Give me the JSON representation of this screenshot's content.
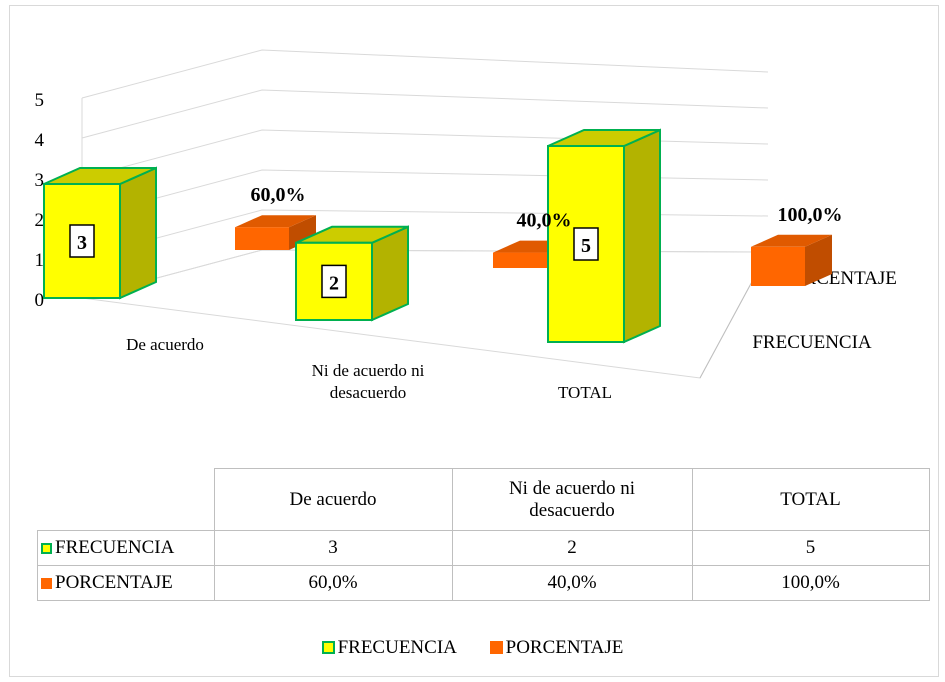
{
  "chart_data": {
    "type": "bar",
    "categories": [
      "De acuerdo",
      "Ni de acuerdo ni desacuerdo",
      "TOTAL"
    ],
    "category_lines": [
      [
        "De acuerdo"
      ],
      [
        "Ni de acuerdo ni",
        "desacuerdo"
      ],
      [
        "TOTAL"
      ]
    ],
    "series": [
      {
        "name": "FRECUENCIA",
        "values": [
          3,
          2,
          5
        ],
        "labels": [
          "3",
          "2",
          "5"
        ],
        "color": "#ffff00",
        "border_color": "#00b050",
        "side_color": "#b3b300",
        "top_color": "#cccc00"
      },
      {
        "name": "PORCENTAJE",
        "values": [
          0.6,
          0.4,
          1.0
        ],
        "labels": [
          "60,0%",
          "40,0%",
          "100,0%"
        ],
        "color": "#ff6600",
        "side_color": "#c04d00",
        "top_color": "#e05a00"
      }
    ],
    "yticks": [
      "0",
      "1",
      "2",
      "3",
      "4",
      "5"
    ],
    "ylim": [
      0,
      5
    ],
    "depth_labels": [
      "FRECUENCIA",
      "PORCENTAJE"
    ],
    "grid": true,
    "legend": "bottom",
    "data_table": true
  },
  "table": {
    "headers": [
      "De acuerdo",
      "Ni de acuerdo ni desacuerdo",
      "TOTAL"
    ],
    "header_lines": [
      [
        "De acuerdo"
      ],
      [
        "Ni de acuerdo ni",
        "desacuerdo"
      ],
      [
        "TOTAL"
      ]
    ],
    "rows": [
      {
        "label": "FRECUENCIA",
        "cells": [
          "3",
          "2",
          "5"
        ]
      },
      {
        "label": "PORCENTAJE",
        "cells": [
          "60,0%",
          "40,0%",
          "100,0%"
        ]
      }
    ]
  },
  "legend": {
    "items": [
      "FRECUENCIA",
      "PORCENTAJE"
    ]
  }
}
